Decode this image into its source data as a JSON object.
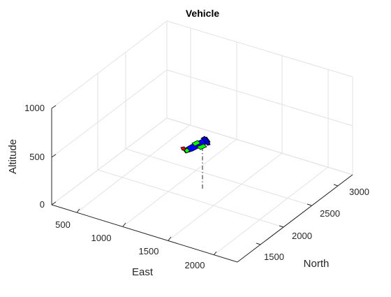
{
  "figure": {
    "title": "Vehicle"
  },
  "axes": {
    "x_label": "East",
    "y_label": "North",
    "z_label": "Altitude",
    "x_ticks": [
      "500",
      "1000",
      "1500",
      "2000"
    ],
    "y_ticks": [
      "1500",
      "2000",
      "2500",
      "3000"
    ],
    "z_ticks": [
      "0",
      "500",
      "1000"
    ]
  },
  "colors": {
    "background": "#ffffff",
    "grid": "#e2e2e2",
    "axis": "#262626",
    "vehicle_body": "#0000ff",
    "vehicle_wing": "#00ff00",
    "vehicle_marker": "#ff0000",
    "drop_line": "#4a4a4a"
  },
  "vehicle": {
    "icon": "aircraft-icon",
    "shadow_line_style": "dash-dot"
  }
}
